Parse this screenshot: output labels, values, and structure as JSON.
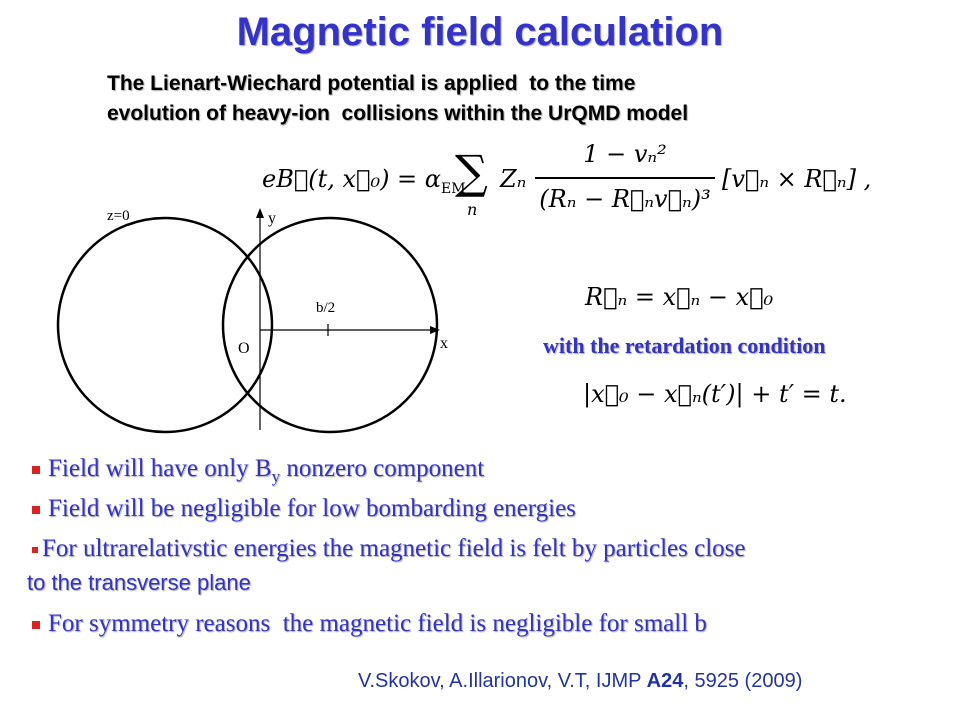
{
  "title": "Magnetic field calculation",
  "subtitle": [
    "The Lienart-Wiechard potential is applied  to the time",
    "evolution of heavy-ion  collisions within the UrQMD model"
  ],
  "equation_main": {
    "lhs": "eB⃗(t, x⃗₀) = α",
    "lhs_sub": "EM",
    "sum": "∑",
    "sum_index": "n",
    "factor": "Zₙ",
    "numerator": "1 − vₙ²",
    "denominator": "(Rₙ − R⃗ₙv⃗ₙ)³",
    "bracket": "[v⃗ₙ × R⃗ₙ] ,"
  },
  "equation_r": "R⃗ₙ = x⃗ₙ − x⃗₀",
  "retardation_label": "with the retardation condition",
  "equation_retardation": "|x⃗₀ − x⃗ₙ(t′)| + t′ = t.",
  "diagram": {
    "plane": "z=0",
    "y_axis": "y",
    "x_axis": "x",
    "half_b": "b/2",
    "origin": "O"
  },
  "bullets": {
    "b1": {
      "text": "Field will have only B",
      "sub": "y",
      "after": " nonzero component"
    },
    "b2": "Field will be negligible for low bombarding energies",
    "b3": {
      "text": "For ultrarelativstic energies the magnetic field is felt by particles close",
      "continuation": "to the transverse plane"
    },
    "b4": "For symmetry reasons  the magnetic field is negligible for small b"
  },
  "citation": {
    "before": "V.Skokov, A.Illarionov, V.T, IJMP ",
    "bold": "A24",
    "after": ", 5925 (2009)"
  }
}
